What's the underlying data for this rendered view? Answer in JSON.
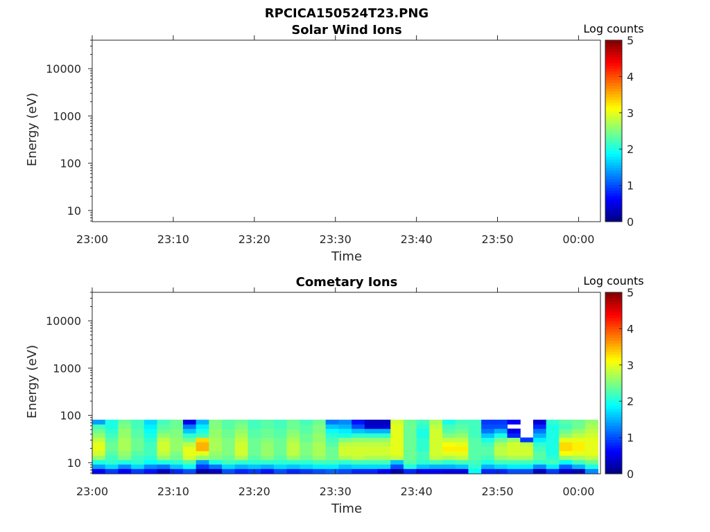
{
  "figure_title": "RPCICA150524T23.PNG",
  "chart_data": [
    {
      "type": "heatmap",
      "title": "Solar Wind Ions",
      "xlabel": "Time",
      "ylabel": "Energy (eV)",
      "yscale": "log",
      "ylim": [
        5.8,
        40000
      ],
      "xlim_minutes_after_2300": [
        0,
        62.7
      ],
      "xticks": [
        {
          "min": 0,
          "label": "23:00"
        },
        {
          "min": 10,
          "label": "23:10"
        },
        {
          "min": 20,
          "label": "23:20"
        },
        {
          "min": 30,
          "label": "23:30"
        },
        {
          "min": 40,
          "label": "23:40"
        },
        {
          "min": 50,
          "label": "23:50"
        },
        {
          "min": 60,
          "label": "00:00"
        }
      ],
      "yticks": [
        {
          "v": 10,
          "label": "10"
        },
        {
          "v": 100,
          "label": "100"
        },
        {
          "v": 1000,
          "label": "1000"
        },
        {
          "v": 10000,
          "label": "10000"
        }
      ],
      "colorbar": {
        "label": "Log counts",
        "range": [
          0,
          5
        ],
        "ticks": [
          "0",
          "1",
          "2",
          "3",
          "4",
          "5"
        ],
        "colormap": "jet"
      },
      "columns": []
    },
    {
      "type": "heatmap",
      "title": "Cometary Ions",
      "xlabel": "Time",
      "ylabel": "Energy (eV)",
      "yscale": "log",
      "ylim": [
        5.8,
        40000
      ],
      "xlim_minutes_after_2300": [
        0,
        62.7
      ],
      "xticks": [
        {
          "min": 0,
          "label": "23:00"
        },
        {
          "min": 10,
          "label": "23:10"
        },
        {
          "min": 20,
          "label": "23:20"
        },
        {
          "min": 30,
          "label": "23:30"
        },
        {
          "min": 40,
          "label": "23:40"
        },
        {
          "min": 50,
          "label": "23:50"
        },
        {
          "min": 60,
          "label": "00:00"
        }
      ],
      "yticks": [
        {
          "v": 10,
          "label": "10"
        },
        {
          "v": 100,
          "label": "100"
        },
        {
          "v": 1000,
          "label": "1000"
        },
        {
          "v": 10000,
          "label": "10000"
        }
      ],
      "colorbar": {
        "label": "Log counts",
        "range": [
          0,
          5
        ],
        "ticks": [
          "0",
          "1",
          "2",
          "3",
          "4",
          "5"
        ],
        "colormap": "jet"
      },
      "energy_range_eV": [
        6,
        81
      ],
      "energy_bins": 12,
      "column_width_min": 1.6,
      "columns": [
        [
          0.6,
          1.4,
          2.0,
          2.6,
          2.9,
          3.0,
          3.0,
          2.8,
          2.6,
          2.4,
          2.2,
          1.4
        ],
        [
          0.9,
          1.7,
          2.1,
          2.2,
          2.3,
          2.4,
          2.4,
          2.3,
          2.2,
          2.1,
          2.0,
          2.0
        ],
        [
          0.6,
          1.3,
          2.0,
          2.5,
          2.6,
          2.7,
          2.7,
          2.7,
          2.6,
          2.6,
          2.5,
          2.4
        ],
        [
          0.9,
          1.7,
          2.1,
          2.2,
          2.3,
          2.4,
          2.4,
          2.4,
          2.3,
          2.3,
          2.2,
          2.2
        ],
        [
          0.7,
          1.3,
          1.9,
          2.1,
          2.2,
          2.2,
          2.2,
          2.1,
          2.0,
          1.9,
          1.8,
          1.7
        ],
        [
          0.3,
          1.2,
          2.0,
          2.6,
          2.8,
          2.9,
          2.9,
          2.8,
          2.6,
          2.4,
          2.3,
          2.2
        ],
        [
          0.8,
          1.6,
          2.1,
          2.4,
          2.5,
          2.6,
          2.6,
          2.6,
          2.5,
          2.5,
          2.4,
          2.4
        ],
        [
          1.0,
          1.9,
          2.3,
          2.9,
          3.0,
          3.0,
          2.8,
          2.4,
          2.1,
          1.6,
          1.2,
          0.5
        ],
        [
          0.2,
          0.9,
          1.4,
          2.6,
          3.0,
          3.5,
          3.5,
          3.3,
          2.2,
          2.0,
          1.8,
          1.5
        ],
        [
          0.3,
          1.2,
          2.0,
          2.5,
          2.6,
          2.7,
          2.7,
          2.7,
          2.6,
          2.6,
          2.5,
          2.5
        ],
        [
          1.0,
          1.7,
          2.2,
          2.4,
          2.5,
          2.5,
          2.5,
          2.5,
          2.4,
          2.4,
          2.3,
          2.3
        ],
        [
          0.8,
          1.5,
          2.1,
          2.7,
          2.9,
          2.9,
          2.9,
          2.8,
          2.7,
          2.6,
          2.5,
          2.4
        ],
        [
          0.9,
          1.6,
          2.1,
          2.3,
          2.4,
          2.4,
          2.4,
          2.4,
          2.3,
          2.3,
          2.2,
          2.2
        ],
        [
          0.7,
          1.5,
          2.1,
          2.5,
          2.6,
          2.6,
          2.6,
          2.5,
          2.4,
          2.4,
          2.3,
          2.3
        ],
        [
          1.0,
          1.7,
          2.1,
          2.3,
          2.4,
          2.4,
          2.4,
          2.4,
          2.3,
          2.3,
          2.2,
          2.2
        ],
        [
          0.8,
          1.6,
          2.1,
          2.6,
          2.8,
          2.8,
          2.8,
          2.7,
          2.6,
          2.5,
          2.4,
          2.4
        ],
        [
          0.9,
          1.7,
          2.1,
          2.4,
          2.5,
          2.5,
          2.5,
          2.4,
          2.4,
          2.3,
          2.3,
          2.2
        ],
        [
          1.0,
          1.8,
          2.2,
          2.6,
          2.7,
          2.7,
          2.7,
          2.6,
          2.6,
          2.5,
          2.5,
          2.4
        ],
        [
          1.1,
          1.8,
          2.2,
          2.4,
          2.4,
          2.4,
          2.3,
          2.2,
          2.1,
          1.9,
          1.6,
          1.2
        ],
        [
          1.0,
          1.6,
          2.1,
          2.7,
          2.9,
          2.9,
          2.8,
          2.5,
          2.0,
          1.8,
          1.5,
          1.3
        ],
        [
          0.8,
          1.7,
          2.2,
          2.8,
          2.9,
          2.9,
          2.8,
          2.6,
          2.1,
          1.6,
          1.0,
          0.7
        ],
        [
          0.8,
          1.7,
          2.2,
          2.7,
          2.9,
          2.9,
          2.8,
          2.6,
          2.1,
          1.5,
          0.4,
          0.3
        ],
        [
          0.6,
          1.7,
          2.2,
          2.7,
          2.9,
          2.9,
          2.8,
          2.6,
          2.1,
          1.5,
          0.4,
          0.3
        ],
        [
          0.2,
          1.0,
          1.6,
          2.8,
          3.0,
          3.0,
          3.0,
          3.0,
          3.0,
          3.0,
          3.0,
          2.9
        ],
        [
          0.8,
          2.0,
          2.3,
          2.4,
          2.4,
          2.4,
          2.4,
          2.4,
          2.4,
          2.4,
          2.4,
          2.4
        ],
        [
          0.6,
          1.6,
          2.1,
          2.2,
          2.2,
          2.1,
          2.1,
          2.1,
          2.0,
          2.0,
          2.1,
          2.2
        ],
        [
          0.6,
          1.5,
          2.2,
          2.8,
          2.9,
          2.9,
          2.9,
          2.9,
          2.9,
          2.9,
          2.8,
          2.7
        ],
        [
          0.5,
          1.5,
          2.1,
          2.7,
          3.0,
          3.2,
          3.1,
          2.8,
          2.5,
          2.3,
          2.2,
          2.0
        ],
        [
          0.5,
          1.6,
          2.2,
          2.8,
          3.0,
          3.2,
          3.0,
          2.8,
          2.6,
          2.4,
          2.3,
          2.2
        ],
        [
          1.9,
          2.1,
          2.2,
          2.3,
          2.3,
          2.3,
          2.3,
          2.3,
          2.2,
          2.2,
          2.2,
          2.2
        ],
        [
          0.8,
          1.5,
          2.0,
          2.2,
          2.3,
          2.3,
          2.2,
          2.0,
          1.6,
          1.2,
          1.0,
          0.9
        ],
        [
          0.8,
          1.7,
          2.2,
          2.6,
          2.8,
          2.8,
          2.7,
          2.4,
          2.0,
          1.5,
          1.0,
          0.9
        ],
        [
          1.0,
          1.8,
          2.2,
          2.7,
          2.9,
          2.9,
          2.9,
          2.6,
          0.8,
          0.5,
          null,
          0.6
        ],
        [
          1.0,
          1.8,
          2.2,
          2.7,
          2.9,
          2.9,
          2.8,
          0.9,
          null,
          null,
          null,
          null
        ],
        [
          0.3,
          1.3,
          2.1,
          2.3,
          2.3,
          2.2,
          2.1,
          1.8,
          1.5,
          1.2,
          0.8,
          0.4
        ],
        [
          0.9,
          1.8,
          2.2,
          2.1,
          2.0,
          2.0,
          2.0,
          2.0,
          2.0,
          2.0,
          2.0,
          2.1
        ],
        [
          0.4,
          1.1,
          1.9,
          2.6,
          3.1,
          3.3,
          3.3,
          3.0,
          2.6,
          2.4,
          2.2,
          2.3
        ],
        [
          0.3,
          1.5,
          2.2,
          2.7,
          3.0,
          3.2,
          3.2,
          3.0,
          2.8,
          2.6,
          2.4,
          2.4
        ],
        [
          1.3,
          2.0,
          2.4,
          2.8,
          3.0,
          3.0,
          3.0,
          3.0,
          2.9,
          2.8,
          2.7,
          2.6
        ]
      ]
    }
  ]
}
